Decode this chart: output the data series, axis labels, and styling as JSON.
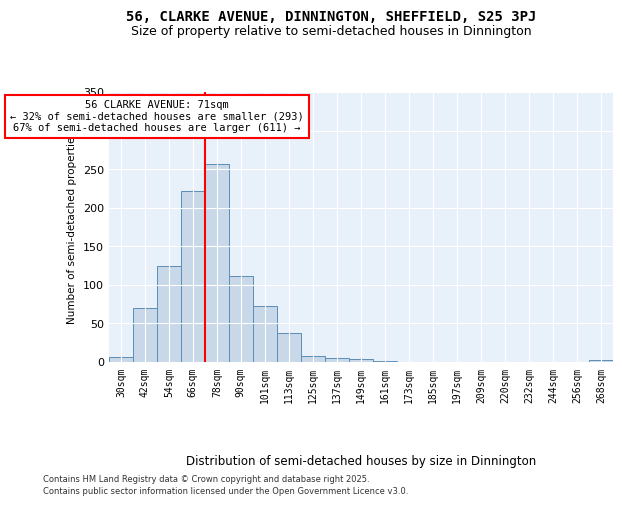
{
  "title": "56, CLARKE AVENUE, DINNINGTON, SHEFFIELD, S25 3PJ",
  "subtitle": "Size of property relative to semi-detached houses in Dinnington",
  "xlabel": "Distribution of semi-detached houses by size in Dinnington",
  "ylabel": "Number of semi-detached properties",
  "categories": [
    "30sqm",
    "42sqm",
    "54sqm",
    "66sqm",
    "78sqm",
    "90sqm",
    "101sqm",
    "113sqm",
    "125sqm",
    "137sqm",
    "149sqm",
    "161sqm",
    "173sqm",
    "185sqm",
    "197sqm",
    "209sqm",
    "220sqm",
    "232sqm",
    "244sqm",
    "256sqm",
    "268sqm"
  ],
  "values": [
    7,
    70,
    125,
    222,
    257,
    112,
    72,
    38,
    8,
    5,
    4,
    1,
    0,
    0,
    0,
    0,
    0,
    0,
    0,
    0,
    2
  ],
  "bar_color": "#c8d8e8",
  "bar_edge_color": "#5b8db8",
  "red_line_x": 3.5,
  "annotation_title": "56 CLARKE AVENUE: 71sqm",
  "annotation_line1": "← 32% of semi-detached houses are smaller (293)",
  "annotation_line2": "67% of semi-detached houses are larger (611) →",
  "ylim": [
    0,
    350
  ],
  "yticks": [
    0,
    50,
    100,
    150,
    200,
    250,
    300,
    350
  ],
  "background_color": "#e8f0fa",
  "footer_line1": "Contains HM Land Registry data © Crown copyright and database right 2025.",
  "footer_line2": "Contains public sector information licensed under the Open Government Licence v3.0.",
  "title_fontsize": 10,
  "subtitle_fontsize": 9
}
